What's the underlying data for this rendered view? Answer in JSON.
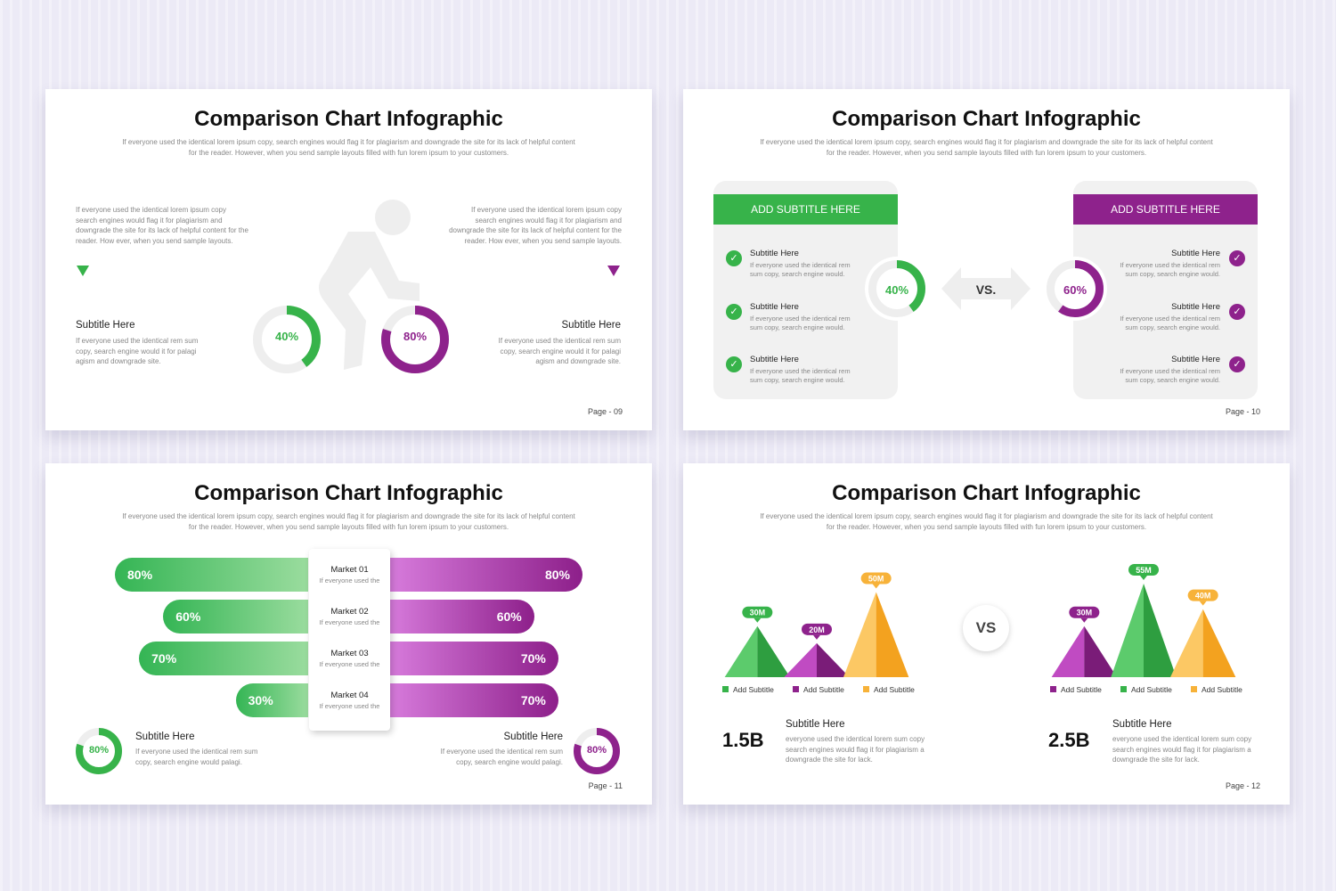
{
  "colors": {
    "green": "#37b34a",
    "purple": "#8e228c",
    "orange": "#f7b239",
    "gray": "#eeeeee"
  },
  "slides": [
    {
      "title": "Comparison Chart Infographic",
      "intro": "If everyone used the identical lorem ipsum copy, search engines would flag it for plagiarism and downgrade the site for its lack of helpful content for the reader. However, when you send sample layouts filled with fun lorem ipsum to your customers.",
      "left_text": "If everyone used the identical lorem ipsum copy search engines would flag it for plagiarism and downgrade the site for its lack of helpful content for the reader. How ever, when you send sample layouts.",
      "right_text": "If everyone used the identical lorem ipsum copy search engines would flag it for plagiarism and downgrade the site for its lack of helpful content for the reader. How ever, when you send sample layouts.",
      "left_subtitle": "Subtitle Here",
      "left_desc": "If everyone used the identical rem sum copy, search engine would it for palagi agism and downgrade site.",
      "right_subtitle": "Subtitle Here",
      "right_desc": "If everyone used the identical rem sum copy, search engine would it for palagi agism and downgrade site.",
      "donut_left": {
        "label": "40%",
        "value": 0.4
      },
      "donut_right": {
        "label": "80%",
        "value": 0.8
      },
      "page": "Page - 09"
    },
    {
      "title": "Comparison Chart Infographic",
      "intro": "If everyone used the identical lorem ipsum copy, search engines would flag it for plagiarism and downgrade the site for its lack of helpful content for the reader. However, when you send sample layouts filled with fun lorem ipsum to your customers.",
      "left_header": "ADD SUBTITLE HERE",
      "right_header": "ADD SUBTITLE HERE",
      "left_items": [
        {
          "title": "Subtitle Here",
          "desc": "If everyone used the identical rem sum copy, search engine would."
        },
        {
          "title": "Subtitle Here",
          "desc": "If everyone used the identical rem sum copy, search engine would."
        },
        {
          "title": "Subtitle Here",
          "desc": "If everyone used the identical rem sum copy, search engine would."
        }
      ],
      "right_items": [
        {
          "title": "Subtitle Here",
          "desc": "If everyone used the identical rem sum copy, search engine would."
        },
        {
          "title": "Subtitle Here",
          "desc": "If everyone used the identical rem sum copy, search engine would."
        },
        {
          "title": "Subtitle Here",
          "desc": "If everyone used the identical rem sum copy, search engine would."
        }
      ],
      "donut_left": {
        "label": "40%",
        "value": 0.4
      },
      "donut_right": {
        "label": "60%",
        "value": 0.6
      },
      "vs": "VS.",
      "check_glyph": "✓",
      "page": "Page - 10"
    },
    {
      "title": "Comparison Chart Infographic",
      "intro": "If everyone used the identical lorem ipsum copy, search engines would flag it for plagiarism and downgrade the site for its lack of helpful content for the reader. However, when you send sample layouts filled with fun lorem ipsum to your customers.",
      "markets": [
        {
          "name": "Market 01",
          "desc": "If everyone used the",
          "left": "80%",
          "right": "80%",
          "left_value": 80,
          "right_value": 80
        },
        {
          "name": "Market 02",
          "desc": "If everyone used the",
          "left": "60%",
          "right": "60%",
          "left_value": 60,
          "right_value": 60
        },
        {
          "name": "Market 03",
          "desc": "If everyone used the",
          "left": "70%",
          "right": "70%",
          "left_value": 70,
          "right_value": 70
        },
        {
          "name": "Market 04",
          "desc": "If everyone used the",
          "left": "30%",
          "right": "70%",
          "left_value": 30,
          "right_value": 70
        }
      ],
      "left_subtitle": "Subtitle Here",
      "left_desc": "If everyone used the identical rem sum copy, search engine would palagi.",
      "right_subtitle": "Subtitle Here",
      "right_desc": "If everyone used the identical rem sum copy, search engine would palagi.",
      "donut_left": {
        "label": "80%",
        "value": 0.8
      },
      "donut_right": {
        "label": "80%",
        "value": 0.8
      },
      "page": "Page - 11"
    },
    {
      "title": "Comparison Chart Infographic",
      "intro": "If everyone used the identical lorem ipsum copy, search engines would flag it for plagiarism and downgrade the site for its lack of helpful content for the reader. However, when you send sample layouts filled with fun lorem ipsum to your customers.",
      "left_chart": [
        {
          "label": "30M",
          "value": 30,
          "color": "green"
        },
        {
          "label": "20M",
          "value": 20,
          "color": "purple"
        },
        {
          "label": "50M",
          "value": 50,
          "color": "orange"
        }
      ],
      "right_chart": [
        {
          "label": "30M",
          "value": 30,
          "color": "purple"
        },
        {
          "label": "55M",
          "value": 55,
          "color": "green"
        },
        {
          "label": "40M",
          "value": 40,
          "color": "orange"
        }
      ],
      "left_legend": [
        "Add Subtitle",
        "Add Subtitle",
        "Add Subtitle"
      ],
      "right_legend": [
        "Add Subtitle",
        "Add Subtitle",
        "Add Subtitle"
      ],
      "vs": "VS",
      "left_total": "1.5B",
      "right_total": "2.5B",
      "left_subtitle": "Subtitle Here",
      "left_desc": "everyone used the identical lorem sum copy search engines would flag it for plagiarism a downgrade the site for  lack.",
      "right_subtitle": "Subtitle Here",
      "right_desc": "everyone used the identical lorem sum copy search engines would flag it for plagiarism a downgrade the site for  lack.",
      "page": "Page - 12"
    }
  ]
}
